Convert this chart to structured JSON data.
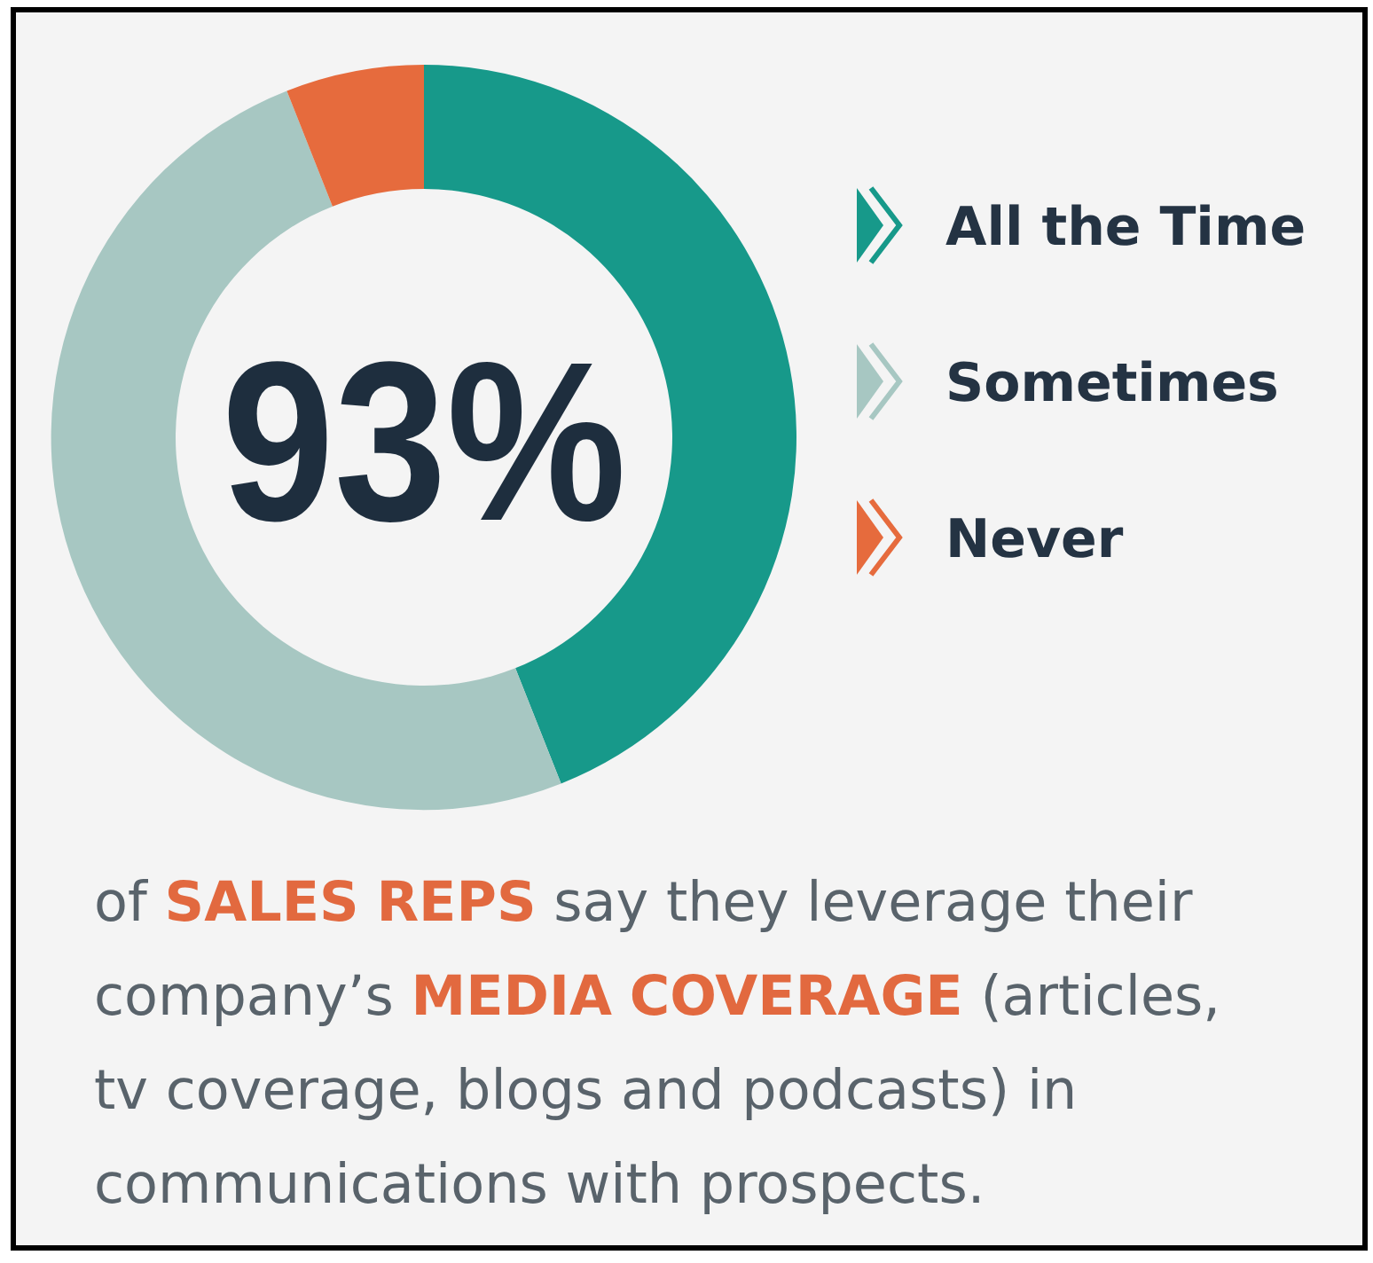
{
  "chart_data": {
    "type": "donut",
    "categories": [
      "All the Time",
      "Sometimes",
      "Never"
    ],
    "values": [
      44,
      50,
      6
    ],
    "colors": [
      "#17998a",
      "#a7c7c2",
      "#e66b3d"
    ],
    "legend": "right",
    "annotations": [
      "93%",
      "of SALES REPS say they leverage their company’s MEDIA COVERAGE (articles, tv coverage, blogs and podcasts) in communications with prospects."
    ]
  }
}
